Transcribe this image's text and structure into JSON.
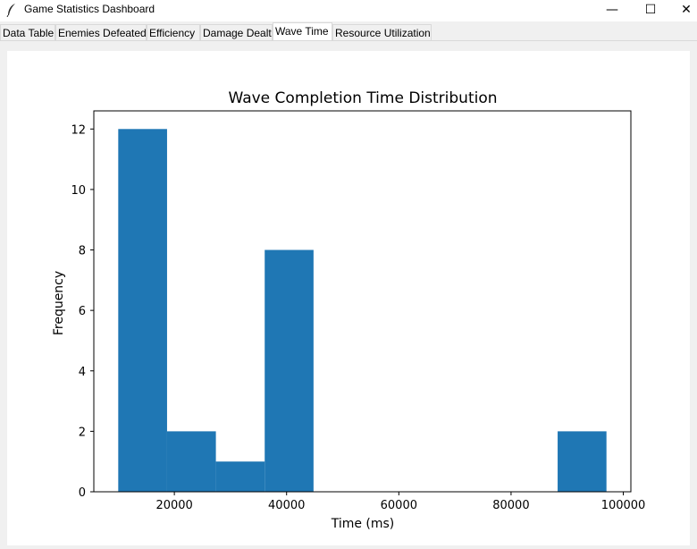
{
  "window": {
    "title": "Game Statistics Dashboard",
    "icon": "feather-icon",
    "controls": {
      "minimize": "—",
      "maximize": "☐",
      "close": "✕"
    }
  },
  "tabs": [
    {
      "label": "Data Table",
      "active": false
    },
    {
      "label": "Enemies Defeated",
      "active": false
    },
    {
      "label": "Efficiency",
      "active": false
    },
    {
      "label": "Damage Dealt",
      "active": false
    },
    {
      "label": "Wave Time",
      "active": true
    },
    {
      "label": "Resource Utilization",
      "active": false
    }
  ],
  "chart_data": {
    "type": "bar",
    "title": "Wave Completion Time Distribution",
    "xlabel": "Time (ms)",
    "ylabel": "Frequency",
    "bins": [
      {
        "start": 10000,
        "end": 18700,
        "count": 12
      },
      {
        "start": 18700,
        "end": 27400,
        "count": 2
      },
      {
        "start": 27400,
        "end": 36100,
        "count": 1
      },
      {
        "start": 36100,
        "end": 44800,
        "count": 8
      },
      {
        "start": 44800,
        "end": 53500,
        "count": 0
      },
      {
        "start": 53500,
        "end": 62200,
        "count": 0
      },
      {
        "start": 62200,
        "end": 70900,
        "count": 0
      },
      {
        "start": 70900,
        "end": 79600,
        "count": 0
      },
      {
        "start": 79600,
        "end": 88300,
        "count": 0
      },
      {
        "start": 88300,
        "end": 97000,
        "count": 2
      }
    ],
    "xlim": [
      5650,
      101350
    ],
    "ylim": [
      0,
      12.6
    ],
    "xticks": [
      20000,
      40000,
      60000,
      80000,
      100000
    ],
    "yticks": [
      0,
      2,
      4,
      6,
      8,
      10,
      12
    ],
    "bar_color": "#1f77b4",
    "grid": false
  }
}
